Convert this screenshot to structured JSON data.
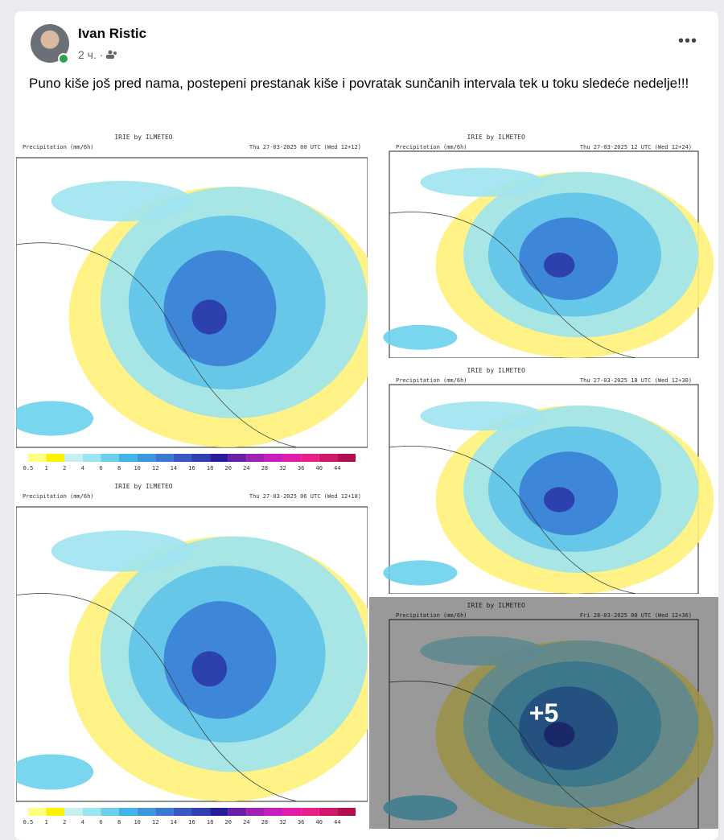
{
  "post": {
    "author": "Ivan Ristic",
    "time": "2 ч.",
    "text": "Puno kiše još pred nama, postepeni prestanak kiše i povratak sunčanih intervala tek u toku sledeće nedelje!!!",
    "more_count": "+5"
  },
  "maps": [
    {
      "source": "IRIE by ILMETEO",
      "variable": "Precipitation (mm/6h)",
      "valid_time": "Thu 27-03-2025 00 UTC (Wed 12+12)",
      "colorbar_labels": [
        "0.5",
        "1",
        "2",
        "4",
        "6",
        "8",
        "10",
        "12",
        "14",
        "16",
        "18",
        "20",
        "24",
        "28",
        "32",
        "36",
        "40",
        "44"
      ]
    },
    {
      "source": "IRIE by ILMETEO",
      "variable": "Precipitation (mm/6h)",
      "valid_time": "Thu 27-03-2025 12 UTC (Wed 12+24)"
    },
    {
      "source": "IRIE by ILMETEO",
      "variable": "Precipitation (mm/6h)",
      "valid_time": "Thu 27-03-2025 06 UTC (Wed 12+18)",
      "colorbar_labels": [
        "0.5",
        "1",
        "2",
        "4",
        "6",
        "8",
        "10",
        "12",
        "14",
        "16",
        "18",
        "20",
        "24",
        "28",
        "32",
        "36",
        "40",
        "44"
      ]
    },
    {
      "source": "IRIE by ILMETEO",
      "variable": "Precipitation (mm/6h)",
      "valid_time": "Thu 27-03-2025 18 UTC (Wed 12+30)"
    },
    {
      "source": "IRIE by ILMETEO",
      "variable": "Precipitation (mm/6h)",
      "valid_time": "Fri 28-03-2025 00 UTC (Wed 12+36)"
    }
  ]
}
